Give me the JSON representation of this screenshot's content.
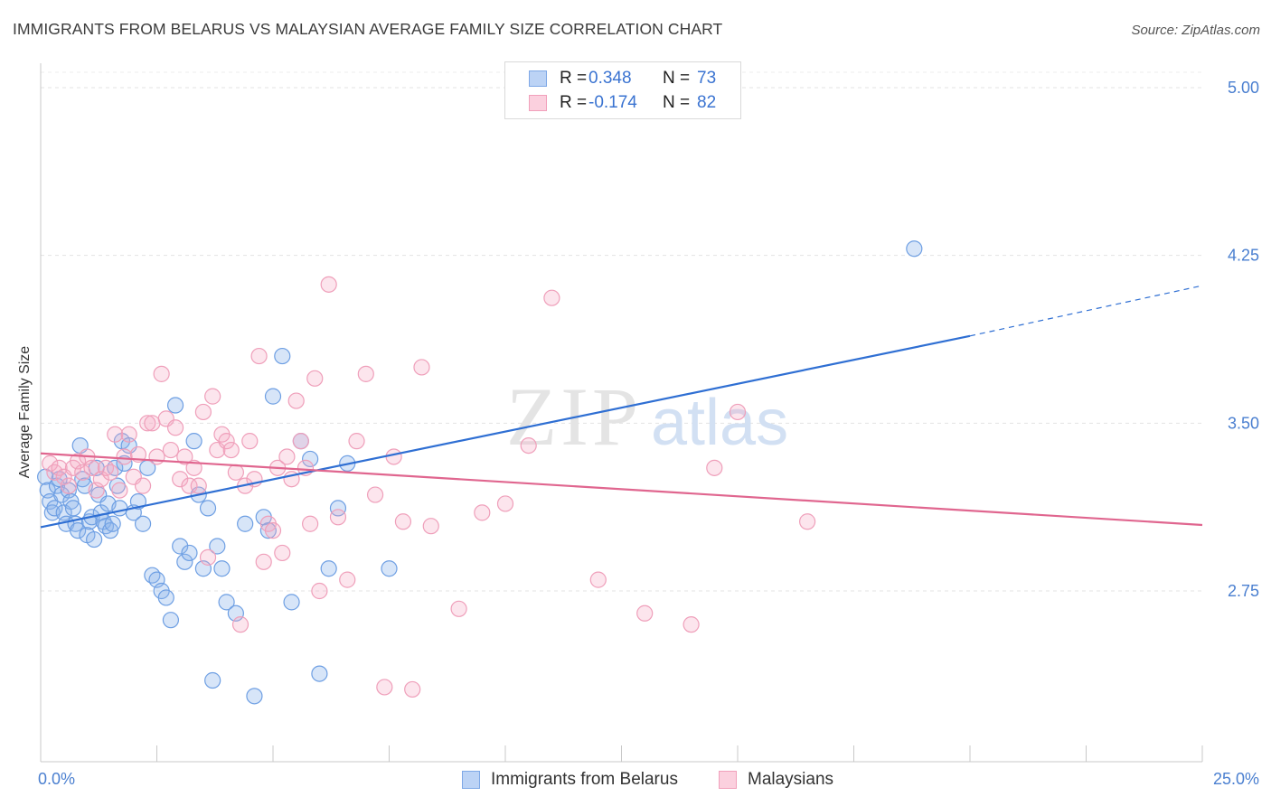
{
  "title": "IMMIGRANTS FROM BELARUS VS MALAYSIAN AVERAGE FAMILY SIZE CORRELATION CHART",
  "source": "Source: ZipAtlas.com",
  "watermark": {
    "zip": "ZIP",
    "atlas": "atlas"
  },
  "legend": {
    "r_label": "R =",
    "n_label": "N =",
    "rows": [
      {
        "r": "0.348",
        "n": "73"
      },
      {
        "r": "-0.174",
        "n": "82"
      }
    ]
  },
  "x_axis": {
    "min_label": "0.0%",
    "max_label": "25.0%"
  },
  "chart_data": {
    "type": "scatter",
    "title": "IMMIGRANTS FROM BELARUS VS MALAYSIAN AVERAGE FAMILY SIZE CORRELATION CHART",
    "xlabel": "",
    "ylabel": "Average Family Size",
    "xlim": [
      0,
      25
    ],
    "ylim": [
      2.0,
      5.15
    ],
    "y_ticks": [
      2.75,
      3.5,
      4.25,
      5.0
    ],
    "y_tick_labels": [
      "2.75",
      "3.50",
      "4.25",
      "5.00"
    ],
    "x_tick_count": 11,
    "grid": true,
    "legend_position": "top-center",
    "series": [
      {
        "name": "Immigrants from Belarus",
        "color": "#6fa0e6",
        "line_color": "#2f6fd3",
        "r": 0.348,
        "n": 73,
        "trend": {
          "x0": 0,
          "y0": 3.035,
          "x1": 20.0,
          "y1": 3.89,
          "dash_to_x": 25.0,
          "dash_to_y": 4.115
        },
        "points": [
          [
            0.1,
            3.26
          ],
          [
            0.15,
            3.2
          ],
          [
            0.2,
            3.15
          ],
          [
            0.25,
            3.1
          ],
          [
            0.3,
            3.12
          ],
          [
            0.35,
            3.22
          ],
          [
            0.4,
            3.25
          ],
          [
            0.45,
            3.18
          ],
          [
            0.5,
            3.1
          ],
          [
            0.55,
            3.05
          ],
          [
            0.6,
            3.2
          ],
          [
            0.65,
            3.15
          ],
          [
            0.7,
            3.12
          ],
          [
            0.75,
            3.05
          ],
          [
            0.8,
            3.02
          ],
          [
            0.85,
            3.4
          ],
          [
            0.9,
            3.25
          ],
          [
            0.95,
            3.22
          ],
          [
            1.0,
            3.0
          ],
          [
            1.05,
            3.06
          ],
          [
            1.1,
            3.08
          ],
          [
            1.15,
            2.98
          ],
          [
            1.2,
            3.3
          ],
          [
            1.25,
            3.18
          ],
          [
            1.3,
            3.1
          ],
          [
            1.35,
            3.06
          ],
          [
            1.4,
            3.04
          ],
          [
            1.45,
            3.14
          ],
          [
            1.5,
            3.02
          ],
          [
            1.55,
            3.05
          ],
          [
            1.6,
            3.3
          ],
          [
            1.65,
            3.22
          ],
          [
            1.7,
            3.12
          ],
          [
            1.75,
            3.42
          ],
          [
            1.8,
            3.32
          ],
          [
            1.9,
            3.4
          ],
          [
            2.0,
            3.1
          ],
          [
            2.1,
            3.15
          ],
          [
            2.2,
            3.05
          ],
          [
            2.3,
            3.3
          ],
          [
            2.4,
            2.82
          ],
          [
            2.5,
            2.8
          ],
          [
            2.6,
            2.75
          ],
          [
            2.7,
            2.72
          ],
          [
            2.8,
            2.62
          ],
          [
            2.9,
            3.58
          ],
          [
            3.0,
            2.95
          ],
          [
            3.1,
            2.88
          ],
          [
            3.2,
            2.92
          ],
          [
            3.3,
            3.42
          ],
          [
            3.4,
            3.18
          ],
          [
            3.5,
            2.85
          ],
          [
            3.6,
            3.12
          ],
          [
            3.7,
            2.35
          ],
          [
            3.8,
            2.95
          ],
          [
            3.9,
            2.85
          ],
          [
            4.0,
            2.7
          ],
          [
            4.2,
            2.65
          ],
          [
            4.4,
            3.05
          ],
          [
            4.6,
            2.28
          ],
          [
            4.8,
            3.08
          ],
          [
            4.9,
            3.02
          ],
          [
            5.0,
            3.62
          ],
          [
            5.2,
            3.8
          ],
          [
            5.4,
            2.7
          ],
          [
            5.6,
            3.42
          ],
          [
            5.8,
            3.34
          ],
          [
            6.0,
            2.38
          ],
          [
            6.2,
            2.85
          ],
          [
            6.4,
            3.12
          ],
          [
            6.6,
            3.32
          ],
          [
            7.5,
            2.85
          ],
          [
            18.8,
            4.28
          ]
        ]
      },
      {
        "name": "Malaysians",
        "color": "#f39bb8",
        "line_color": "#e0668f",
        "r": -0.174,
        "n": 82,
        "trend": {
          "x0": 0,
          "y0": 3.365,
          "x1": 25.0,
          "y1": 3.045
        },
        "points": [
          [
            0.2,
            3.32
          ],
          [
            0.3,
            3.28
          ],
          [
            0.4,
            3.3
          ],
          [
            0.5,
            3.26
          ],
          [
            0.6,
            3.22
          ],
          [
            0.7,
            3.3
          ],
          [
            0.8,
            3.33
          ],
          [
            0.9,
            3.28
          ],
          [
            1.0,
            3.35
          ],
          [
            1.1,
            3.3
          ],
          [
            1.2,
            3.2
          ],
          [
            1.3,
            3.25
          ],
          [
            1.4,
            3.3
          ],
          [
            1.5,
            3.28
          ],
          [
            1.6,
            3.45
          ],
          [
            1.7,
            3.2
          ],
          [
            1.8,
            3.35
          ],
          [
            1.9,
            3.45
          ],
          [
            2.0,
            3.26
          ],
          [
            2.1,
            3.36
          ],
          [
            2.2,
            3.22
          ],
          [
            2.3,
            3.5
          ],
          [
            2.4,
            3.5
          ],
          [
            2.5,
            3.35
          ],
          [
            2.6,
            3.72
          ],
          [
            2.7,
            3.52
          ],
          [
            2.8,
            3.38
          ],
          [
            2.9,
            3.48
          ],
          [
            3.0,
            3.25
          ],
          [
            3.1,
            3.35
          ],
          [
            3.2,
            3.22
          ],
          [
            3.3,
            3.3
          ],
          [
            3.4,
            3.22
          ],
          [
            3.5,
            3.55
          ],
          [
            3.6,
            2.9
          ],
          [
            3.7,
            3.62
          ],
          [
            3.8,
            3.38
          ],
          [
            3.9,
            3.45
          ],
          [
            4.0,
            3.42
          ],
          [
            4.1,
            3.38
          ],
          [
            4.2,
            3.28
          ],
          [
            4.3,
            2.6
          ],
          [
            4.4,
            3.22
          ],
          [
            4.5,
            3.42
          ],
          [
            4.6,
            3.25
          ],
          [
            4.7,
            3.8
          ],
          [
            4.8,
            2.88
          ],
          [
            4.9,
            3.05
          ],
          [
            5.0,
            3.02
          ],
          [
            5.1,
            3.3
          ],
          [
            5.2,
            2.92
          ],
          [
            5.3,
            3.35
          ],
          [
            5.4,
            3.25
          ],
          [
            5.5,
            3.6
          ],
          [
            5.6,
            3.42
          ],
          [
            5.7,
            3.3
          ],
          [
            5.8,
            3.05
          ],
          [
            5.9,
            3.7
          ],
          [
            6.0,
            2.75
          ],
          [
            6.2,
            4.12
          ],
          [
            6.4,
            3.08
          ],
          [
            6.6,
            2.8
          ],
          [
            6.8,
            3.42
          ],
          [
            7.0,
            3.72
          ],
          [
            7.2,
            3.18
          ],
          [
            7.4,
            2.32
          ],
          [
            7.6,
            3.35
          ],
          [
            7.8,
            3.06
          ],
          [
            8.0,
            2.31
          ],
          [
            8.2,
            3.75
          ],
          [
            8.4,
            3.04
          ],
          [
            9.0,
            2.67
          ],
          [
            9.5,
            3.1
          ],
          [
            10.0,
            3.14
          ],
          [
            10.5,
            3.4
          ],
          [
            11.0,
            4.06
          ],
          [
            12.0,
            2.8
          ],
          [
            13.0,
            2.65
          ],
          [
            14.0,
            2.6
          ],
          [
            14.5,
            3.3
          ],
          [
            15.0,
            3.55
          ],
          [
            16.5,
            3.06
          ]
        ]
      }
    ]
  }
}
